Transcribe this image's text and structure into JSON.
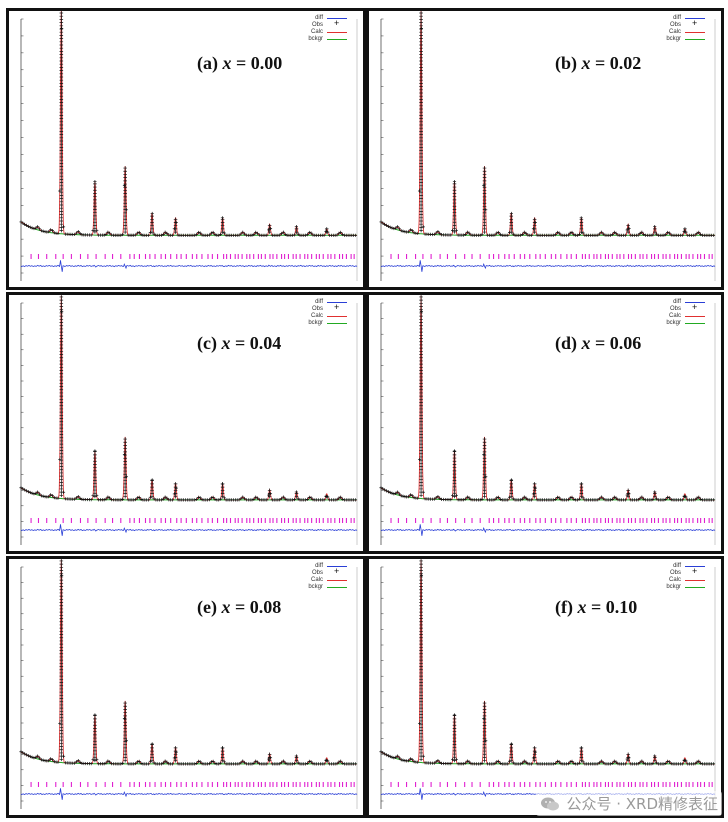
{
  "colors": {
    "diff": "#2a3fd6",
    "obs": "#111111",
    "calc": "#e03030",
    "bckgr": "#22aa22",
    "ticks": "#e020d0",
    "frame": "#111111",
    "axis": "#333333"
  },
  "legend_labels": [
    "diff",
    "Obs",
    "Calc",
    "bckgr"
  ],
  "panels": [
    {
      "label_prefix": "(a) ",
      "label_var": "x",
      "label_value": " = 0.00"
    },
    {
      "label_prefix": "(b) ",
      "label_var": "x",
      "label_value": " = 0.02"
    },
    {
      "label_prefix": "(c) ",
      "label_var": "x",
      "label_value": " = 0.04"
    },
    {
      "label_prefix": "(d) ",
      "label_var": "x",
      "label_value": " = 0.06"
    },
    {
      "label_prefix": "(e) ",
      "label_var": "x",
      "label_value": " = 0.08"
    },
    {
      "label_prefix": "(f) ",
      "label_var": "x",
      "label_value": " = 0.10"
    }
  ],
  "chart_data": [
    {
      "type": "line",
      "series": [
        {
          "name": "diff"
        },
        {
          "name": "Obs"
        },
        {
          "name": "Calc"
        },
        {
          "name": "bckgr"
        }
      ],
      "x_range": [
        0,
        100
      ],
      "peaks": [
        {
          "x": 12,
          "y": 100
        },
        {
          "x": 22,
          "y": 24
        },
        {
          "x": 31,
          "y": 31
        },
        {
          "x": 39,
          "y": 10
        },
        {
          "x": 46,
          "y": 8
        },
        {
          "x": 60,
          "y": 8
        },
        {
          "x": 74,
          "y": 5
        },
        {
          "x": 82,
          "y": 4
        },
        {
          "x": 91,
          "y": 3
        }
      ]
    }
  ],
  "watermark": {
    "text": "公众号 · XRD精修表征"
  }
}
